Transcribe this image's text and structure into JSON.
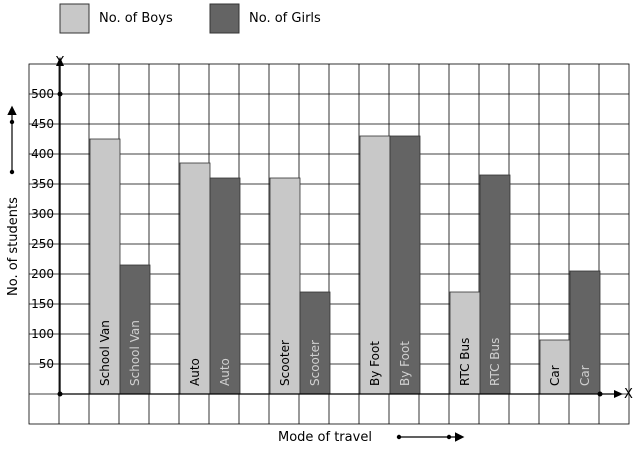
{
  "chart_data": {
    "type": "bar",
    "categories": [
      "School Van",
      "Auto",
      "Scooter",
      "By Foot",
      "RTC Bus",
      "Car"
    ],
    "series": [
      {
        "name": "No. of Boys",
        "values": [
          425,
          385,
          360,
          430,
          170,
          90
        ],
        "color": "#c8c8c8",
        "label_color": "#000000"
      },
      {
        "name": "No. of Girls",
        "values": [
          215,
          360,
          170,
          430,
          365,
          205
        ],
        "color": "#646464",
        "label_color": "#d0d0d0"
      }
    ],
    "xlabel": "Mode of travel",
    "ylabel": "No. of students",
    "y_axis_letter": "Y",
    "x_axis_letter": "X",
    "yticks": [
      50,
      100,
      150,
      200,
      250,
      300,
      350,
      400,
      450,
      500
    ],
    "ytick_labels": [
      "50",
      "100",
      "150",
      "200",
      "250",
      "300",
      "350",
      "400",
      "450",
      "500"
    ],
    "ylim": [
      0,
      550
    ],
    "grid": true,
    "legend_position": "top-left"
  }
}
